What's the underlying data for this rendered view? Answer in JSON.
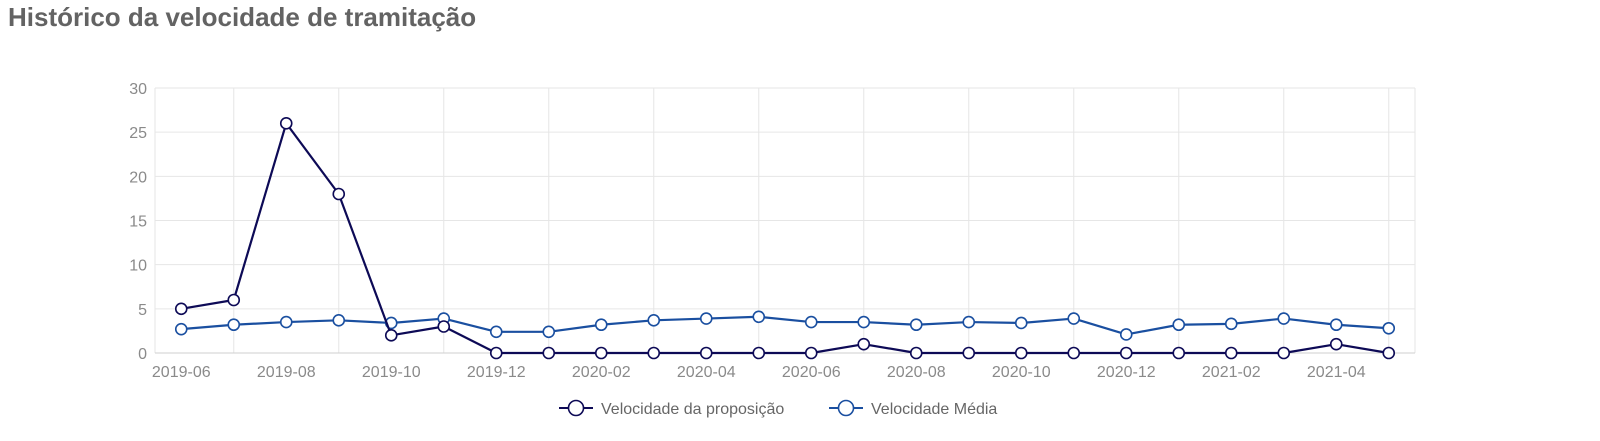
{
  "page": {
    "title": "Histórico da velocidade de tramitação"
  },
  "chart_data": {
    "type": "line",
    "title": "",
    "xlabel": "",
    "ylabel": "",
    "x": [
      "2019-06",
      "2019-07",
      "2019-08",
      "2019-09",
      "2019-10",
      "2019-11",
      "2019-12",
      "2020-01",
      "2020-02",
      "2020-03",
      "2020-04",
      "2020-05",
      "2020-06",
      "2020-07",
      "2020-08",
      "2020-09",
      "2020-10",
      "2020-11",
      "2020-12",
      "2021-01",
      "2021-02",
      "2021-03",
      "2021-04",
      "2021-05"
    ],
    "x_tick_labels": [
      "2019-06",
      "2019-08",
      "2019-10",
      "2019-12",
      "2020-02",
      "2020-04",
      "2020-06",
      "2020-08",
      "2020-10",
      "2020-12",
      "2021-02",
      "2021-04"
    ],
    "ylim": [
      0,
      30
    ],
    "y_ticks": [
      0,
      5,
      10,
      15,
      20,
      25,
      30
    ],
    "grid": true,
    "legend_position": "bottom-center",
    "series": [
      {
        "name": "Velocidade da proposição",
        "color": "#0d0a56",
        "values": [
          5,
          6,
          26,
          18,
          2,
          3,
          0,
          0,
          0,
          0,
          0,
          0,
          0,
          1,
          0,
          0,
          0,
          0,
          0,
          0,
          0,
          0,
          1,
          0
        ]
      },
      {
        "name": "Velocidade Média",
        "color": "#1a4fa0",
        "values": [
          2.7,
          3.2,
          3.5,
          3.7,
          3.4,
          3.9,
          2.4,
          2.4,
          3.2,
          3.7,
          3.9,
          4.1,
          3.5,
          3.5,
          3.2,
          3.5,
          3.4,
          3.9,
          2.1,
          3.2,
          3.3,
          3.9,
          3.2,
          2.8
        ]
      }
    ]
  }
}
